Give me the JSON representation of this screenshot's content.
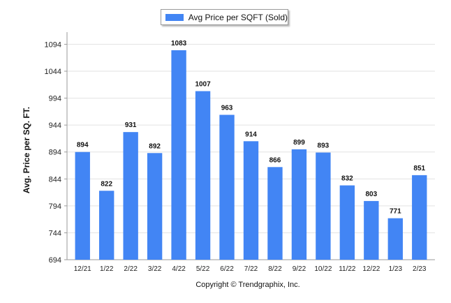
{
  "chart_data": {
    "type": "bar",
    "legend": {
      "label": "Avg Price per SQFT (Sold)",
      "placement": "top-center"
    },
    "ylabel": "Avg. Price per SQ. FT.",
    "xlabel": "",
    "ylim": [
      694,
      1114
    ],
    "yticks": [
      694,
      744,
      794,
      844,
      894,
      944,
      994,
      1044,
      1094
    ],
    "grid": true,
    "color": "#4285f4",
    "categories": [
      "12/21",
      "1/22",
      "2/22",
      "3/22",
      "4/22",
      "5/22",
      "6/22",
      "7/22",
      "8/22",
      "9/22",
      "10/22",
      "11/22",
      "12/22",
      "1/23",
      "2/23"
    ],
    "series": [
      {
        "values": [
          894,
          822,
          931,
          892,
          1083,
          1007,
          963,
          914,
          866,
          899,
          893,
          832,
          803,
          771,
          851
        ]
      }
    ]
  },
  "footer": {
    "copyright": "Copyright © Trendgraphix, Inc."
  }
}
